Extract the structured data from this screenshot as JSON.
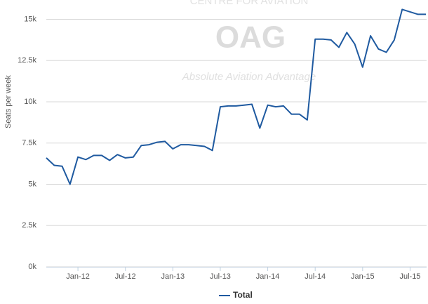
{
  "chart_data": {
    "type": "line",
    "watermark": {
      "org": "CENTRE FOR AVIATION",
      "brand": "OAG",
      "tagline": "Absolute Aviation Advantage"
    },
    "y_label": "Seats per week",
    "categories": [
      null,
      null,
      null,
      null,
      "Jan-12",
      null,
      null,
      null,
      null,
      null,
      "Jul-12",
      null,
      null,
      null,
      null,
      null,
      "Jan-13",
      null,
      null,
      null,
      null,
      null,
      "Jul-13",
      null,
      null,
      null,
      null,
      null,
      "Jan-14",
      null,
      null,
      null,
      null,
      null,
      "Jul-14",
      null,
      null,
      null,
      null,
      null,
      "Jan-15",
      null,
      null,
      null,
      null,
      null,
      "Jul-15",
      null,
      null
    ],
    "series": [
      {
        "name": "Total",
        "color": "#1f5aa0",
        "values": [
          6600,
          6150,
          6100,
          5000,
          6650,
          6500,
          6750,
          6750,
          6450,
          6800,
          6600,
          6650,
          7350,
          7400,
          7550,
          7600,
          7150,
          7400,
          7400,
          7350,
          7300,
          7050,
          9700,
          9750,
          9750,
          9800,
          9850,
          8400,
          9800,
          9700,
          9750,
          9250,
          9250,
          8900,
          13800,
          13800,
          13750,
          13300,
          14200,
          13500,
          12100,
          14000,
          13200,
          13000,
          13750,
          15600,
          15450,
          15300,
          15300
        ]
      }
    ],
    "ylim": [
      0,
      16000
    ],
    "yticks": [
      {
        "value": 0,
        "label": "0k"
      },
      {
        "value": 2500,
        "label": "2.5k"
      },
      {
        "value": 5000,
        "label": "5k"
      },
      {
        "value": 7500,
        "label": "7.5k"
      },
      {
        "value": 10000,
        "label": "10k"
      },
      {
        "value": 12500,
        "label": "12.5k"
      },
      {
        "value": 15000,
        "label": "15k"
      }
    ],
    "grid": true,
    "legend": "bottom"
  }
}
